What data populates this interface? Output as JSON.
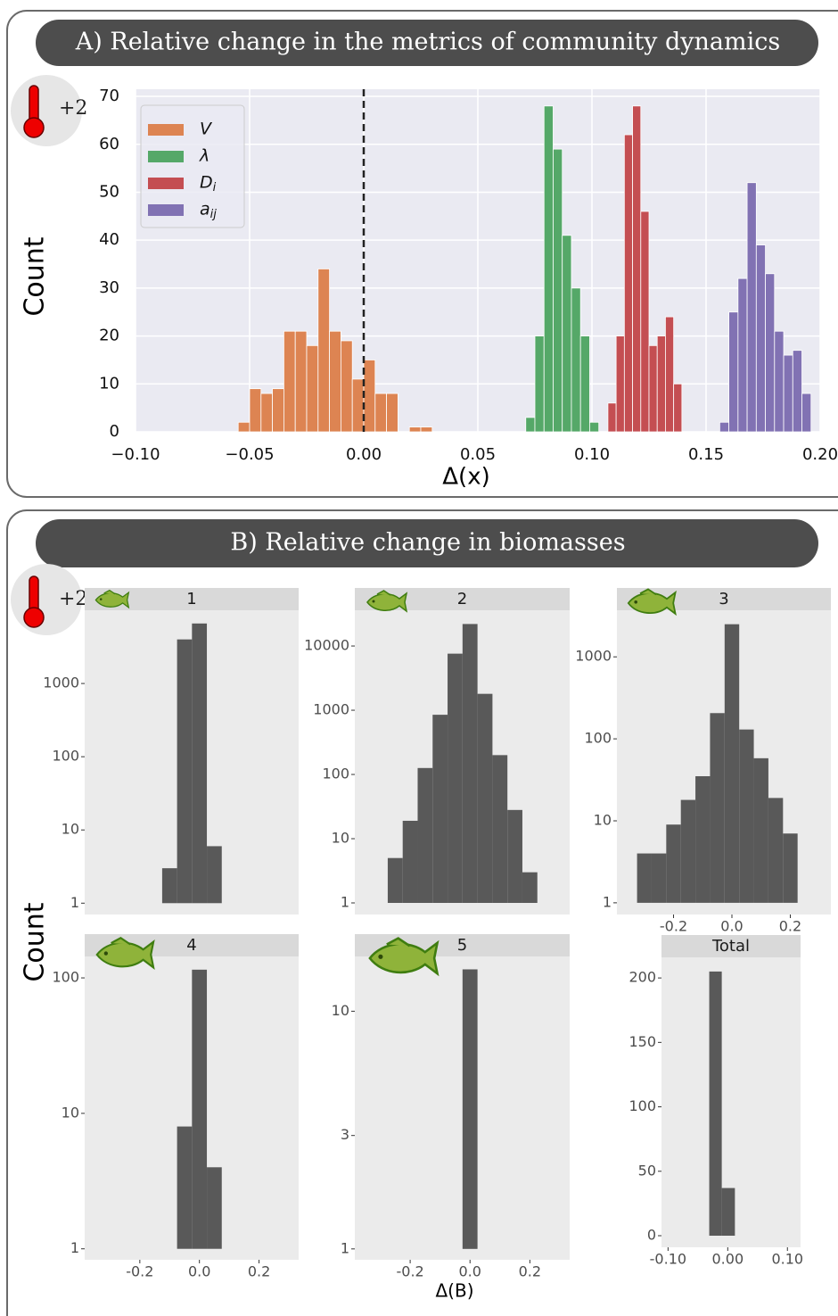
{
  "panels": [
    {
      "title": "A) Relative change in the metrics of community dynamics",
      "badge": "+2"
    },
    {
      "title": "B) Relative change in biomasses",
      "badge": "+2",
      "x_label": "Δ(B)",
      "y_label": "Count"
    }
  ],
  "chart_data": [
    {
      "type": "histogram",
      "x_label": "Δ(x)",
      "y_label": "Count",
      "grid": true,
      "legend": "upper left",
      "vline": 0,
      "xlim": [
        -0.1,
        0.2
      ],
      "ylim": [
        0,
        71.5
      ],
      "xticks": [
        {
          "value": -0.1,
          "label": "−0.10"
        },
        {
          "value": -0.05,
          "label": "−0.05"
        },
        {
          "value": 0,
          "label": "0.00"
        },
        {
          "value": 0.05,
          "label": "0.05"
        },
        {
          "value": 0.1,
          "label": "0.10"
        },
        {
          "value": 0.15,
          "label": "0.15"
        },
        {
          "value": 0.2,
          "label": "0.20"
        }
      ],
      "yticks": [
        0,
        10,
        20,
        30,
        40,
        50,
        60,
        70
      ],
      "series": [
        {
          "name": "V",
          "color": "#dd8452",
          "bins": [
            -0.055,
            -0.05,
            -0.045,
            -0.04,
            -0.035,
            -0.03,
            -0.025,
            -0.02,
            -0.015,
            -0.01,
            -0.005,
            0,
            0.005,
            0.01,
            0.015,
            0.02,
            0.025,
            0.03
          ],
          "counts": [
            2,
            9,
            8,
            9,
            21,
            21,
            18,
            34,
            21,
            19,
            11,
            15,
            8,
            8,
            0,
            1,
            1
          ]
        },
        {
          "name": "λ",
          "color": "#55a868",
          "bins": [
            0.071,
            0.075,
            0.079,
            0.083,
            0.087,
            0.091,
            0.095,
            0.099,
            0.103
          ],
          "counts": [
            3,
            20,
            68,
            59,
            41,
            30,
            20,
            2
          ]
        },
        {
          "name": "Di",
          "color": "#c44e52",
          "bins": [
            0.107,
            0.1106,
            0.1142,
            0.1178,
            0.1214,
            0.125,
            0.1286,
            0.1322,
            0.1358,
            0.1394
          ],
          "counts": [
            6,
            20,
            62,
            68,
            46,
            18,
            20,
            24,
            10
          ]
        },
        {
          "name": "aij",
          "color": "#8172b3",
          "bins": [
            0.156,
            0.16,
            0.164,
            0.168,
            0.172,
            0.176,
            0.18,
            0.184,
            0.188,
            0.192,
            0.196
          ],
          "counts": [
            2,
            25,
            32,
            52,
            39,
            33,
            21,
            16,
            17,
            8
          ]
        }
      ]
    },
    {
      "type": "histogram",
      "title": "1",
      "log_y": true,
      "color": "#595959",
      "xlim": [
        -0.385,
        0.333
      ],
      "ylim": [
        0.7,
        10000
      ],
      "yticks": [
        1,
        10,
        100,
        1000
      ],
      "bins": [
        -0.125,
        -0.075,
        -0.025,
        0.025,
        0.075
      ],
      "counts": [
        3,
        4000,
        6600,
        6
      ]
    },
    {
      "type": "histogram",
      "title": "2",
      "log_y": true,
      "color": "#595959",
      "xlim": [
        -0.385,
        0.333
      ],
      "ylim": [
        0.66,
        36000
      ],
      "yticks": [
        1,
        10,
        100,
        1000,
        10000
      ],
      "bins": [
        -0.275,
        -0.225,
        -0.175,
        -0.125,
        -0.075,
        -0.025,
        0.025,
        0.075,
        0.125,
        0.175,
        0.225
      ],
      "counts": [
        5,
        19,
        126,
        850,
        7600,
        22000,
        1800,
        200,
        28,
        3
      ]
    },
    {
      "type": "histogram",
      "title": "3",
      "log_y": true,
      "color": "#595959",
      "xlim": [
        -0.394,
        0.339
      ],
      "ylim": [
        0.72,
        3700
      ],
      "yticks": [
        1,
        10,
        100,
        1000
      ],
      "xticks": [
        -0.2,
        {
          "value": 0,
          "label": "0.0"
        },
        0.2
      ],
      "bins": [
        -0.325,
        -0.275,
        -0.225,
        -0.175,
        -0.125,
        -0.075,
        -0.025,
        0.025,
        0.075,
        0.125,
        0.175,
        0.225
      ],
      "counts": [
        4,
        4,
        9,
        18,
        35,
        206,
        2500,
        130,
        58,
        19,
        7
      ]
    },
    {
      "type": "histogram",
      "title": "4",
      "log_y": true,
      "color": "#595959",
      "xlim": [
        -0.385,
        0.333
      ],
      "ylim": [
        0.83,
        144
      ],
      "yticks": [
        1,
        10,
        100
      ],
      "xticks": [
        -0.2,
        {
          "value": 0,
          "label": "0.0"
        },
        0.2
      ],
      "bins": [
        -0.075,
        -0.025,
        0.025,
        0.075
      ],
      "counts": [
        8,
        115,
        4
      ]
    },
    {
      "type": "histogram",
      "title": "5",
      "log_y": true,
      "color": "#595959",
      "xlim": [
        -0.385,
        0.333
      ],
      "ylim": [
        0.9,
        17
      ],
      "yticks": [
        1,
        3,
        10
      ],
      "xticks": [
        -0.2,
        {
          "value": 0,
          "label": "0.0"
        },
        0.2
      ],
      "bins": [
        -0.025,
        0.025
      ],
      "counts": [
        15
      ]
    },
    {
      "type": "histogram",
      "title": "Total",
      "log_y": false,
      "color": "#595959",
      "xlim": [
        -0.111,
        0.122
      ],
      "ylim": [
        -9,
        216
      ],
      "yticks": [
        0,
        50,
        100,
        150,
        200
      ],
      "xticks": [
        {
          "value": -0.1,
          "label": "-0.10"
        },
        {
          "value": 0,
          "label": "0.00"
        },
        {
          "value": 0.1,
          "label": "0.10"
        }
      ],
      "bins": [
        -0.031,
        -0.01,
        0.012
      ],
      "counts": [
        205,
        37
      ]
    }
  ]
}
